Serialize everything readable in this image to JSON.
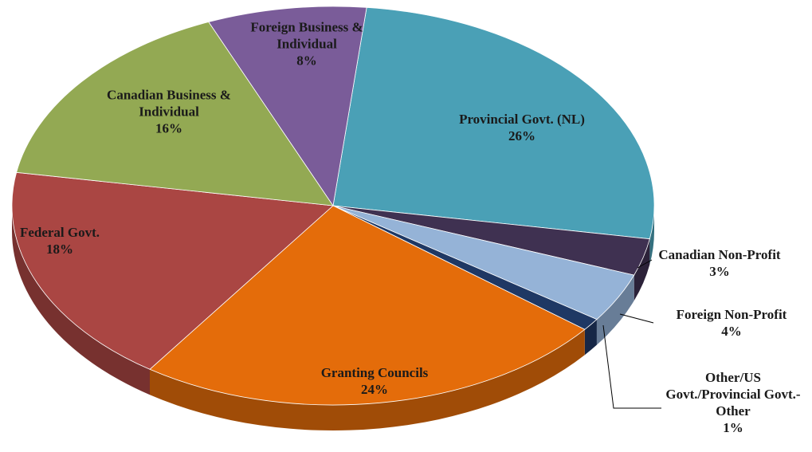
{
  "chart_data": {
    "type": "pie",
    "categories": [
      "Provincial Govt. (NL)",
      "Canadian Non-Profit",
      "Foreign Non-Profit",
      "Other/US Govt./Provincial Govt.-Other",
      "Granting Councils",
      "Federal Govt.",
      "Canadian Business & Individual",
      "Foreign Business & Individual"
    ],
    "values": [
      26,
      3,
      4,
      1,
      24,
      18,
      16,
      8
    ],
    "value_labels": [
      "26%",
      "3%",
      "4%",
      "1%",
      "24%",
      "18%",
      "16%",
      "8%"
    ],
    "colors": [
      "#4aa0b6",
      "#3f3151",
      "#95b3d7",
      "#1f3864",
      "#e46c0a",
      "#aa4643",
      "#93a953",
      "#7a5c99"
    ]
  }
}
